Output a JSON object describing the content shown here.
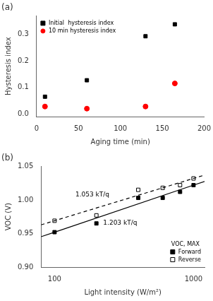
{
  "chart_data": [
    {
      "type": "scatter",
      "title": "(a)",
      "xlabel": "Aging time (min)",
      "ylabel": "Hysteresis index",
      "xlim": [
        0,
        200
      ],
      "ylim": [
        -0.01,
        0.37
      ],
      "xticks": [
        0,
        50,
        100,
        150,
        200
      ],
      "yticks": [
        {
          "value": 0.0,
          "label": "0.0"
        },
        0.1,
        0.2,
        0.3
      ],
      "grid": false,
      "legend": "upper left",
      "series": [
        {
          "name": "Initial  hysteresis index",
          "color": "black",
          "marker": "square",
          "x": [
            10,
            60,
            130,
            165
          ],
          "values": [
            0.065,
            0.127,
            0.293,
            0.338
          ]
        },
        {
          "name": "10 min hysteresis index",
          "color": "red",
          "marker": "circle",
          "x": [
            10,
            60,
            130,
            165
          ],
          "values": [
            0.028,
            0.02,
            0.028,
            0.115
          ]
        }
      ]
    },
    {
      "type": "scatter",
      "title": "(b)",
      "xlabel": "Light intensity (W/m²)",
      "ylabel": "VOC (V)",
      "log": "x",
      "xlim": [
        80,
        1200
      ],
      "ylim": [
        0.9,
        1.05
      ],
      "xticks": [
        100,
        1000
      ],
      "yticks": [
        {
          "value": 0.9,
          "label": "0.90"
        },
        0.95,
        {
          "value": 1.0,
          "label": "1.00"
        },
        1.05
      ],
      "grid": false,
      "legend": "lower right",
      "legend_title": "VOC, MAX",
      "annotations": [
        "1.053 kT/q",
        "1.203 kT/q"
      ],
      "series": [
        {
          "type": "line",
          "color": "black",
          "line_style": "solid",
          "x": [
            80,
            100,
            1000,
            1200
          ],
          "values": [
            0.9452163,
            0.952,
            1.022,
            1.0275427
          ]
        },
        {
          "type": "line",
          "color": "black",
          "line_style": "dashed",
          "x": [
            80,
            100,
            1000,
            1200
          ],
          "values": [
            0.9628947,
            0.969,
            1.032,
            1.0369884
          ]
        },
        {
          "name": "Forward",
          "color": "black",
          "marker": "square",
          "x": [
            100,
            200,
            400,
            600,
            800,
            1000
          ],
          "values": [
            0.952,
            0.965,
            1.003,
            1.003,
            1.012,
            1.022
          ]
        },
        {
          "name": "Reverse",
          "color": "black",
          "marker": "square-open",
          "x": [
            100,
            200,
            400,
            600,
            800,
            1000
          ],
          "values": [
            0.969,
            0.977,
            1.015,
            1.018,
            1.022,
            1.032
          ]
        }
      ]
    }
  ]
}
